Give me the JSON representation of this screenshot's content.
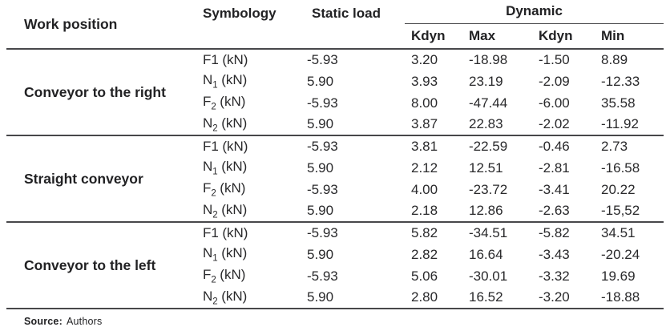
{
  "colors": {
    "rule": "#47474a",
    "text": "#29292b"
  },
  "table": {
    "headers": {
      "work_position": "Work position",
      "symbology": "Symbology",
      "static_load": "Static load",
      "dynamic": "Dynamic",
      "sub": [
        "Kdyn",
        "Max",
        "Kdyn",
        "Min"
      ]
    },
    "groups": [
      {
        "name": "Conveyor to the right",
        "rows": [
          {
            "symbol_base": "F1",
            "symbol_sub": "",
            "unit": "(kN)",
            "values": [
              "-5.93",
              "3.20",
              "-18.98",
              "-1.50",
              "8.89"
            ]
          },
          {
            "symbol_base": "N",
            "symbol_sub": "1",
            "unit": "(kN)",
            "values": [
              "5.90",
              "3.93",
              "23.19",
              "-2.09",
              "-12.33"
            ]
          },
          {
            "symbol_base": "F",
            "symbol_sub": "2",
            "unit": "(kN)",
            "values": [
              "-5.93",
              "8.00",
              "-47.44",
              "-6.00",
              "35.58"
            ]
          },
          {
            "symbol_base": "N",
            "symbol_sub": "2",
            "unit": "(kN)",
            "values": [
              "5.90",
              "3.87",
              "22.83",
              "-2.02",
              "-11.92"
            ]
          }
        ]
      },
      {
        "name": "Straight conveyor",
        "rows": [
          {
            "symbol_base": "F1",
            "symbol_sub": "",
            "unit": "(kN)",
            "values": [
              "-5.93",
              "3.81",
              "-22.59",
              "-0.46",
              "2.73"
            ]
          },
          {
            "symbol_base": "N",
            "symbol_sub": "1",
            "unit": "(kN)",
            "values": [
              "5.90",
              "2.12",
              "12.51",
              "-2.81",
              "-16.58"
            ]
          },
          {
            "symbol_base": "F",
            "symbol_sub": "2",
            "unit": "(kN)",
            "values": [
              "-5.93",
              "4.00",
              "-23.72",
              "-3.41",
              "20.22"
            ]
          },
          {
            "symbol_base": "N",
            "symbol_sub": "2",
            "unit": "(kN)",
            "values": [
              "5.90",
              "2.18",
              "12.86",
              "-2.63",
              "-15,52"
            ]
          }
        ]
      },
      {
        "name": "Conveyor to the left",
        "rows": [
          {
            "symbol_base": "F1",
            "symbol_sub": "",
            "unit": "(kN)",
            "values": [
              "-5.93",
              "5.82",
              "-34.51",
              "-5.82",
              "34.51"
            ]
          },
          {
            "symbol_base": "N",
            "symbol_sub": "1",
            "unit": "(kN)",
            "values": [
              "5.90",
              "2.82",
              "16.64",
              "-3.43",
              "-20.24"
            ]
          },
          {
            "symbol_base": "F",
            "symbol_sub": "2",
            "unit": "(kN)",
            "values": [
              "-5.93",
              "5.06",
              "-30.01",
              "-3.32",
              "19.69"
            ]
          },
          {
            "symbol_base": "N",
            "symbol_sub": "2",
            "unit": "(kN)",
            "values": [
              "5.90",
              "2.80",
              "16.52",
              "-3.20",
              "-18.88"
            ]
          }
        ]
      }
    ]
  },
  "footer": {
    "source_label": "Source:",
    "source_value": "Authors"
  }
}
